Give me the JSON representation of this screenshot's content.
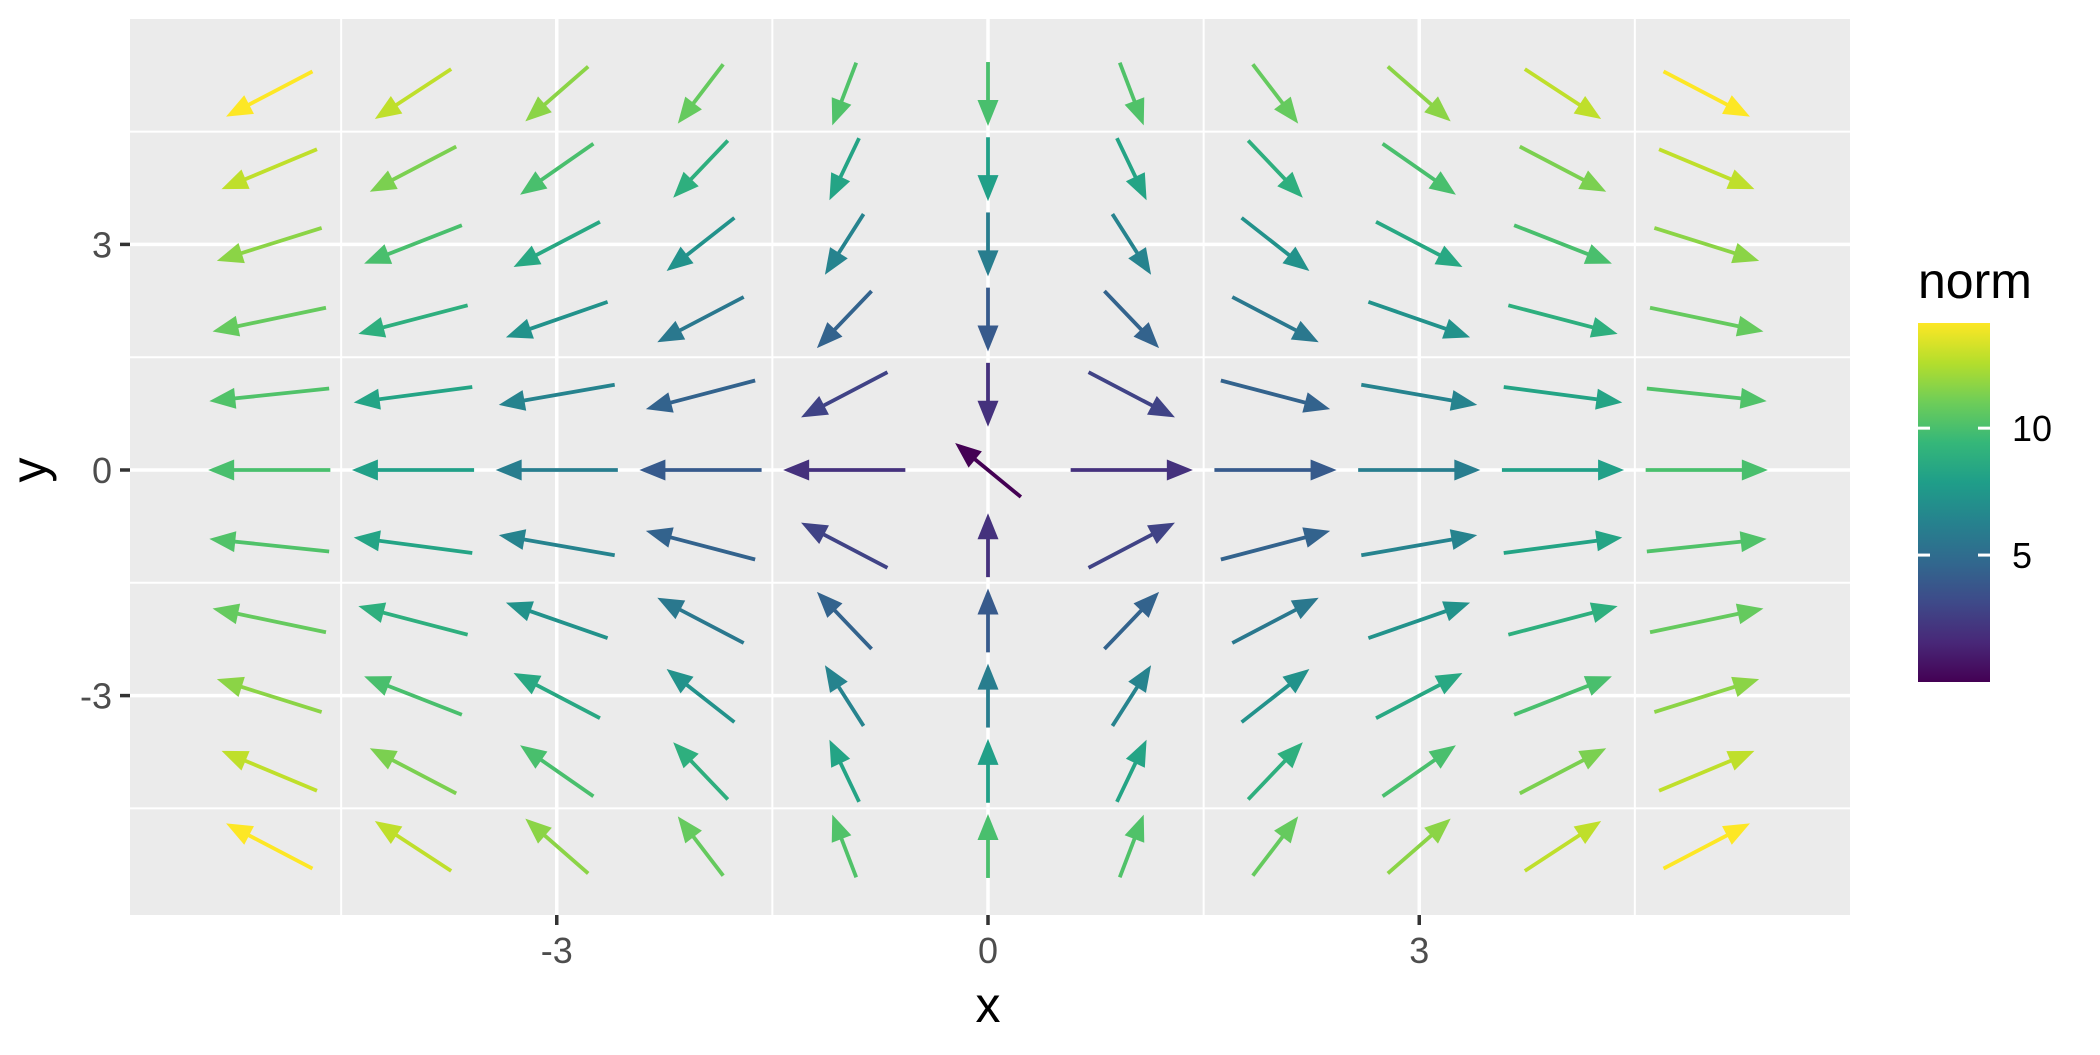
{
  "figure": {
    "background": "#FFFFFF",
    "panel_background": "#EBEBEB",
    "grid_color": "#FFFFFF",
    "tick_mark_color": "#333333",
    "tick_label_color": "#4D4D4D",
    "title_color": "#000000"
  },
  "chart_data": {
    "type": "quiver",
    "description": "Vector field v(x,y) = (2x, -2y) on an 11x11 integer grid, arrows normalized to constant length and colored by vector norm (viridis colormap)",
    "xlabel": "x",
    "ylabel": "y",
    "x_ticks": {
      "values": [
        -3,
        0,
        3
      ],
      "labels": [
        "-3",
        "0",
        "3"
      ]
    },
    "y_ticks": {
      "values": [
        3,
        0,
        -3
      ],
      "labels": [
        "3",
        "0",
        "-3"
      ]
    },
    "x_range": [
      -5.97,
      5.99
    ],
    "y_range": [
      -5.92,
      6.0
    ],
    "minor_gridlines_x": [
      -4.5,
      -1.5,
      1.5,
      4.5
    ],
    "minor_gridlines_y": [
      -4.5,
      -1.5,
      1.5,
      4.5
    ],
    "major_gridlines_x": [
      -3,
      0,
      3
    ],
    "major_gridlines_y": [
      -3,
      0,
      3
    ],
    "grid_x": [
      -5,
      -4,
      -3,
      -2,
      -1,
      0,
      1,
      2,
      3,
      4,
      5
    ],
    "grid_y": [
      -5,
      -4,
      -3,
      -2,
      -1,
      0,
      1,
      2,
      3,
      4,
      5
    ],
    "field_formula": "v(x,y) = (2x, -2y)",
    "norm_formula": "norm = 2*sqrt(x^2 + y^2)",
    "norm_range": [
      0,
      14.1421
    ],
    "arrow_normalized_length_data_units": 0.85,
    "origin_arrow": {
      "x": 0,
      "y": 0,
      "direction": [
        -0.538,
        0.843
      ],
      "norm": 0
    },
    "legend": {
      "title": "norm",
      "position": "right",
      "colormap": "viridis",
      "ticks": {
        "values": [
          10,
          5
        ],
        "labels": [
          "10",
          "5"
        ]
      }
    },
    "viridis_anchors": [
      "#440154",
      "#482878",
      "#3E4A89",
      "#31688E",
      "#26828E",
      "#1F9E89",
      "#35B779",
      "#6DCD59",
      "#B4DE2C",
      "#FDE725"
    ]
  }
}
